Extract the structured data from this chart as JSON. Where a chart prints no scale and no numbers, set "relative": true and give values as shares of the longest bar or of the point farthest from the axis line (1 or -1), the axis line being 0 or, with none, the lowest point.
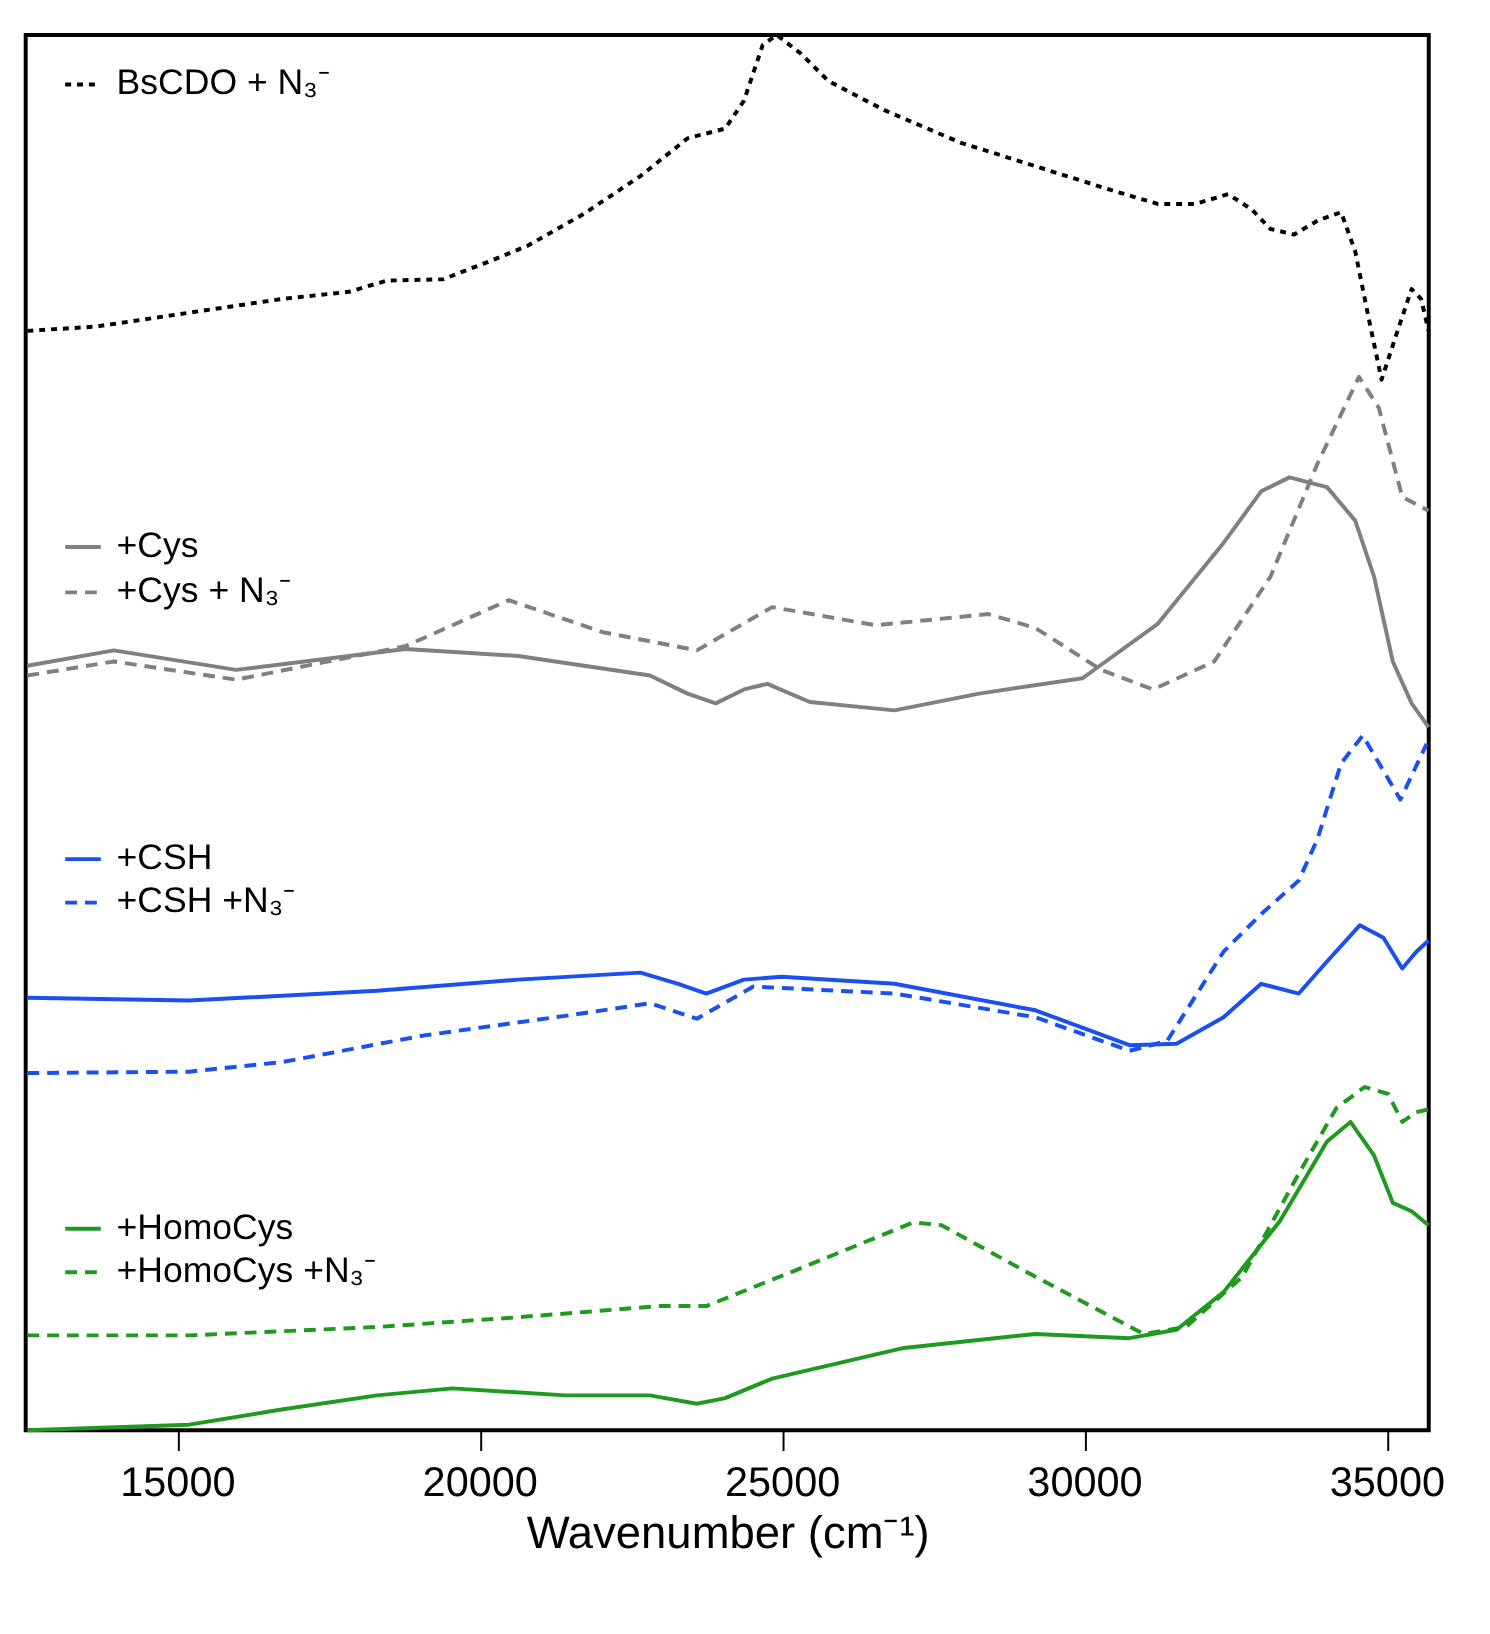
{
  "chart_data": {
    "type": "line",
    "relative": true,
    "xlabel": "Wavenumber (cm⁻¹)",
    "xlim": [
      12500,
      35700
    ],
    "xticks": [
      15000,
      20000,
      25000,
      30000,
      35000
    ],
    "grid": false,
    "legend": "left",
    "series": [
      {
        "name": "BsCDO + N₃⁻",
        "color": "#000000",
        "line_style": "dotted",
        "x": [
          12528,
          13647,
          15202,
          16757,
          17846,
          18468,
          19401,
          20178,
          20800,
          21733,
          22666,
          23444,
          24066,
          24377,
          24688,
          24921,
          25310,
          25776,
          26709,
          27953,
          29197,
          30441,
          31219,
          31841,
          32385,
          32774,
          33085,
          33473,
          33862,
          34251,
          34484,
          34717,
          34920,
          35184,
          35417,
          35573,
          35697
        ],
        "values": [
          0.788,
          0.791,
          0.801,
          0.811,
          0.816,
          0.824,
          0.825,
          0.838,
          0.849,
          0.872,
          0.899,
          0.926,
          0.933,
          0.953,
          0.993,
          1.0,
          0.987,
          0.967,
          0.946,
          0.923,
          0.906,
          0.889,
          0.879,
          0.879,
          0.886,
          0.875,
          0.861,
          0.857,
          0.867,
          0.873,
          0.845,
          0.795,
          0.753,
          0.788,
          0.818,
          0.811,
          0.788
        ]
      },
      {
        "name": "+Cys",
        "color": "#808080",
        "line_style": "solid",
        "x": [
          12528,
          13958,
          15980,
          18779,
          20645,
          22822,
          23444,
          23910,
          24377,
          24765,
          25465,
          26865,
          28264,
          29975,
          31219,
          32307,
          32929,
          33396,
          34018,
          34484,
          34795,
          35106,
          35417,
          35697
        ],
        "values": [
          0.548,
          0.559,
          0.545,
          0.56,
          0.555,
          0.541,
          0.528,
          0.521,
          0.531,
          0.535,
          0.522,
          0.516,
          0.528,
          0.539,
          0.578,
          0.636,
          0.673,
          0.683,
          0.676,
          0.652,
          0.612,
          0.551,
          0.521,
          0.504
        ]
      },
      {
        "name": "+Cys + N₃⁻",
        "color": "#808080",
        "line_style": "dashed",
        "x": [
          12528,
          13958,
          15980,
          18779,
          20489,
          22044,
          23599,
          24843,
          26554,
          28420,
          29197,
          30286,
          31141,
          32152,
          33085,
          33862,
          34546,
          34873,
          35262,
          35697
        ],
        "values": [
          0.541,
          0.551,
          0.538,
          0.562,
          0.595,
          0.572,
          0.559,
          0.59,
          0.577,
          0.585,
          0.575,
          0.545,
          0.531,
          0.551,
          0.612,
          0.693,
          0.755,
          0.733,
          0.669,
          0.659
        ]
      },
      {
        "name": "+CSH",
        "color": "#1a4ff0",
        "line_style": "solid",
        "x": [
          12528,
          15202,
          18312,
          20645,
          22666,
          23288,
          23755,
          24377,
          24999,
          26865,
          29197,
          30752,
          31530,
          32307,
          32929,
          33551,
          34018,
          34562,
          34951,
          35262,
          35495,
          35697
        ],
        "values": [
          0.31,
          0.308,
          0.315,
          0.323,
          0.328,
          0.32,
          0.313,
          0.323,
          0.325,
          0.32,
          0.301,
          0.276,
          0.277,
          0.296,
          0.32,
          0.313,
          0.336,
          0.362,
          0.353,
          0.331,
          0.343,
          0.351
        ]
      },
      {
        "name": "+CSH +N₃⁻",
        "color": "#1a4ff0",
        "line_style": "dashed",
        "x": [
          12528,
          15202,
          16757,
          19090,
          21422,
          22822,
          23599,
          24532,
          26865,
          29197,
          30752,
          31374,
          32307,
          32929,
          33551,
          33862,
          34251,
          34609,
          35231,
          35666
        ],
        "values": [
          0.256,
          0.257,
          0.264,
          0.283,
          0.297,
          0.306,
          0.295,
          0.318,
          0.313,
          0.296,
          0.272,
          0.279,
          0.343,
          0.37,
          0.394,
          0.424,
          0.478,
          0.498,
          0.452,
          0.492
        ]
      },
      {
        "name": "+HomoCys",
        "color": "#1f9a1f",
        "line_style": "solid",
        "x": [
          12528,
          15202,
          16757,
          18312,
          19556,
          21422,
          22822,
          23599,
          24066,
          24843,
          27020,
          29197,
          30752,
          31530,
          32307,
          33240,
          34018,
          34406,
          34795,
          35106,
          35417,
          35697
        ],
        "values": [
          0.0,
          0.004,
          0.015,
          0.025,
          0.03,
          0.025,
          0.025,
          0.019,
          0.023,
          0.037,
          0.059,
          0.069,
          0.066,
          0.072,
          0.099,
          0.15,
          0.207,
          0.221,
          0.197,
          0.163,
          0.157,
          0.147
        ]
      },
      {
        "name": "+HomoCys +N₃⁻",
        "color": "#1f9a1f",
        "line_style": "dashed",
        "x": [
          12528,
          15202,
          18312,
          20645,
          22977,
          23755,
          25310,
          27176,
          27642,
          29197,
          30985,
          31685,
          32618,
          33551,
          34173,
          34640,
          35029,
          35262,
          35495,
          35697
        ],
        "values": [
          0.068,
          0.068,
          0.074,
          0.081,
          0.089,
          0.089,
          0.116,
          0.149,
          0.147,
          0.11,
          0.069,
          0.074,
          0.11,
          0.184,
          0.231,
          0.246,
          0.241,
          0.221,
          0.228,
          0.23
        ]
      }
    ]
  }
}
